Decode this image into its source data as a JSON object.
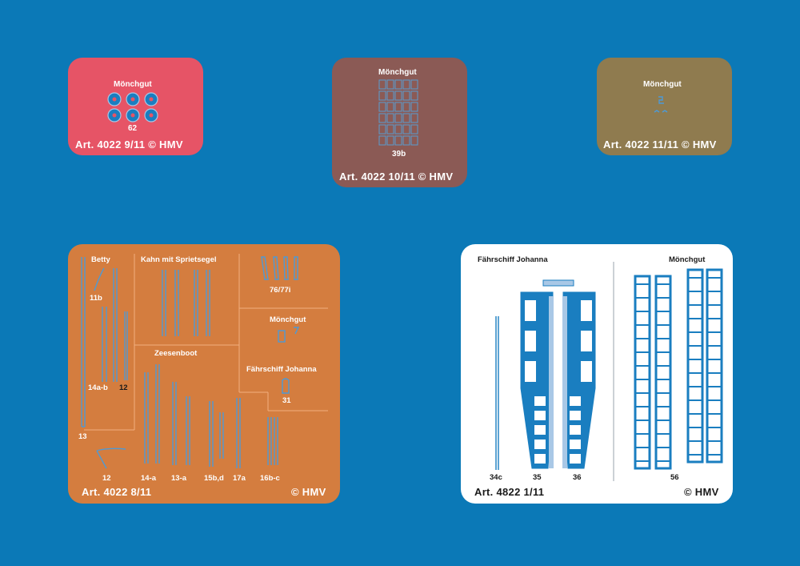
{
  "colors": {
    "background": "#0b79b7",
    "sheet_pink": "#e65466",
    "sheet_brown": "#8b5a55",
    "sheet_olive": "#8f7b4f",
    "sheet_orange": "#d47d3f",
    "sheet_white": "#ffffff",
    "part_blue": "#1a7ec0"
  },
  "sheets": {
    "pink": {
      "title": "Mönchgut",
      "part": "62",
      "art": "Art. 4022 9/11 © HMV"
    },
    "brown": {
      "title": "Mönchgut",
      "part": "39b",
      "art": "Art. 4022 10/11 © HMV"
    },
    "olive": {
      "title": "Mönchgut",
      "art": "Art. 4022 11/11 © HMV"
    },
    "orange": {
      "betty": "Betty",
      "kahn": "Kahn mit Sprietsegel",
      "p7677": "76/77i",
      "moenchgut": "Mönchgut",
      "zeesenboot": "Zeesenboot",
      "faehrschiff": "Fährschiff Johanna",
      "p11b": "11b",
      "p14ab": "14a-b",
      "p12a": "12",
      "p31": "31",
      "p13": "13",
      "p12b": "12",
      "p14a": "14-a",
      "p13a": "13-a",
      "p15bd": "15b,d",
      "p17a": "17a",
      "p16bc": "16b-c",
      "art": "Art. 4022 8/11",
      "copyright": "© HMV"
    },
    "white": {
      "faehrschiff": "Fährschiff Johanna",
      "moenchgut": "Mönchgut",
      "p34c": "34c",
      "p35": "35",
      "p36": "36",
      "p56": "56",
      "art": "Art. 4822 1/11",
      "copyright": "© HMV"
    }
  }
}
